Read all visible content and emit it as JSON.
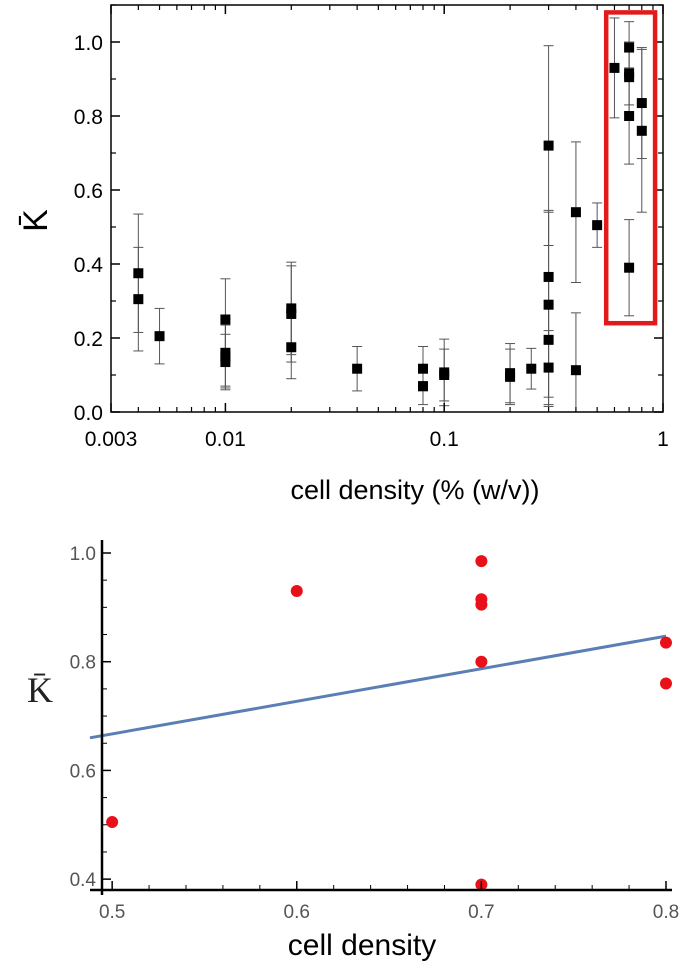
{
  "chart_data": [
    {
      "type": "scatter",
      "xscale": "log",
      "xlabel": "cell density (% (w/v))",
      "ylabel": "K̄",
      "xlim": [
        0.003,
        1
      ],
      "ylim": [
        0,
        1.1
      ],
      "x_ticks": [
        {
          "value": 0.003,
          "label": "0.003"
        },
        {
          "value": 0.01,
          "label": "0.01"
        },
        {
          "value": 0.1,
          "label": "0.1"
        },
        {
          "value": 1,
          "label": "1"
        }
      ],
      "y_ticks": [
        {
          "value": 0.0,
          "label": "0.0"
        },
        {
          "value": 0.2,
          "label": "0.2"
        },
        {
          "value": 0.4,
          "label": "0.4"
        },
        {
          "value": 0.6,
          "label": "0.6"
        },
        {
          "value": 0.8,
          "label": "0.8"
        },
        {
          "value": 1.0,
          "label": "1.0"
        }
      ],
      "grid": false,
      "marker": "square",
      "marker_color": "#000000",
      "highlight_box": {
        "x_range": [
          0.55,
          0.92
        ],
        "y_range": [
          0.24,
          1.08
        ],
        "color": "#e31a1c"
      },
      "points": [
        {
          "x": 0.004,
          "y": 0.375,
          "err": 0.16
        },
        {
          "x": 0.004,
          "y": 0.305,
          "err": 0.14
        },
        {
          "x": 0.005,
          "y": 0.205,
          "err": 0.075
        },
        {
          "x": 0.01,
          "y": 0.25,
          "err": 0.11
        },
        {
          "x": 0.01,
          "y": 0.16,
          "err": 0.09
        },
        {
          "x": 0.01,
          "y": 0.15,
          "err": 0.085
        },
        {
          "x": 0.01,
          "y": 0.135,
          "err": 0.075
        },
        {
          "x": 0.02,
          "y": 0.28,
          "err": 0.125
        },
        {
          "x": 0.02,
          "y": 0.265,
          "err": 0.13
        },
        {
          "x": 0.02,
          "y": 0.175,
          "err": 0.085
        },
        {
          "x": 0.04,
          "y": 0.117,
          "err": 0.06
        },
        {
          "x": 0.08,
          "y": 0.117,
          "err": 0.06
        },
        {
          "x": 0.08,
          "y": 0.07,
          "err": 0.05
        },
        {
          "x": 0.1,
          "y": 0.107,
          "err": 0.09
        },
        {
          "x": 0.1,
          "y": 0.1,
          "err": 0.07
        },
        {
          "x": 0.2,
          "y": 0.105,
          "err": 0.08
        },
        {
          "x": 0.2,
          "y": 0.095,
          "err": 0.075
        },
        {
          "x": 0.25,
          "y": 0.117,
          "err": 0.055
        },
        {
          "x": 0.3,
          "y": 0.72,
          "err": 0.27
        },
        {
          "x": 0.3,
          "y": 0.365,
          "err": 0.18
        },
        {
          "x": 0.3,
          "y": 0.29,
          "err": 0.25
        },
        {
          "x": 0.3,
          "y": 0.195,
          "err": 0.18
        },
        {
          "x": 0.3,
          "y": 0.12,
          "err": 0.1
        },
        {
          "x": 0.4,
          "y": 0.54,
          "err": 0.19
        },
        {
          "x": 0.4,
          "y": 0.113,
          "err": 0.155
        },
        {
          "x": 0.5,
          "y": 0.505,
          "err": 0.06
        },
        {
          "x": 0.6,
          "y": 0.93,
          "err": 0.135
        },
        {
          "x": 0.7,
          "y": 0.985,
          "err": 0.07
        },
        {
          "x": 0.7,
          "y": 0.915,
          "err": 0.085
        },
        {
          "x": 0.7,
          "y": 0.905,
          "err": 0.095
        },
        {
          "x": 0.7,
          "y": 0.8,
          "err": 0.13
        },
        {
          "x": 0.7,
          "y": 0.39,
          "err": 0.13
        },
        {
          "x": 0.8,
          "y": 0.835,
          "err": 0.15
        },
        {
          "x": 0.8,
          "y": 0.76,
          "err": 0.22
        }
      ]
    },
    {
      "type": "scatter",
      "xlabel": "cell density",
      "ylabel": "K̄",
      "xlim": [
        0.488,
        0.8
      ],
      "ylim": [
        0.38,
        1.0
      ],
      "x_ticks": [
        {
          "value": 0.5,
          "label": "0.5"
        },
        {
          "value": 0.6,
          "label": "0.6"
        },
        {
          "value": 0.7,
          "label": "0.7"
        },
        {
          "value": 0.8,
          "label": "0.8"
        }
      ],
      "y_ticks": [
        {
          "value": 0.4,
          "label": "0.4"
        },
        {
          "value": 0.6,
          "label": "0.6"
        },
        {
          "value": 0.8,
          "label": "0.8"
        },
        {
          "value": 1.0,
          "label": "1.0"
        }
      ],
      "grid": false,
      "marker": "circle",
      "marker_color": "#e8111a",
      "fit_line": {
        "x": [
          0.488,
          0.8
        ],
        "y": [
          0.66,
          0.847
        ],
        "color": "#5b7fb4"
      },
      "points": [
        {
          "x": 0.5,
          "y": 0.505
        },
        {
          "x": 0.6,
          "y": 0.93
        },
        {
          "x": 0.7,
          "y": 0.985
        },
        {
          "x": 0.7,
          "y": 0.915
        },
        {
          "x": 0.7,
          "y": 0.905
        },
        {
          "x": 0.7,
          "y": 0.8
        },
        {
          "x": 0.7,
          "y": 0.39
        },
        {
          "x": 0.8,
          "y": 0.835
        },
        {
          "x": 0.8,
          "y": 0.76
        }
      ]
    }
  ]
}
